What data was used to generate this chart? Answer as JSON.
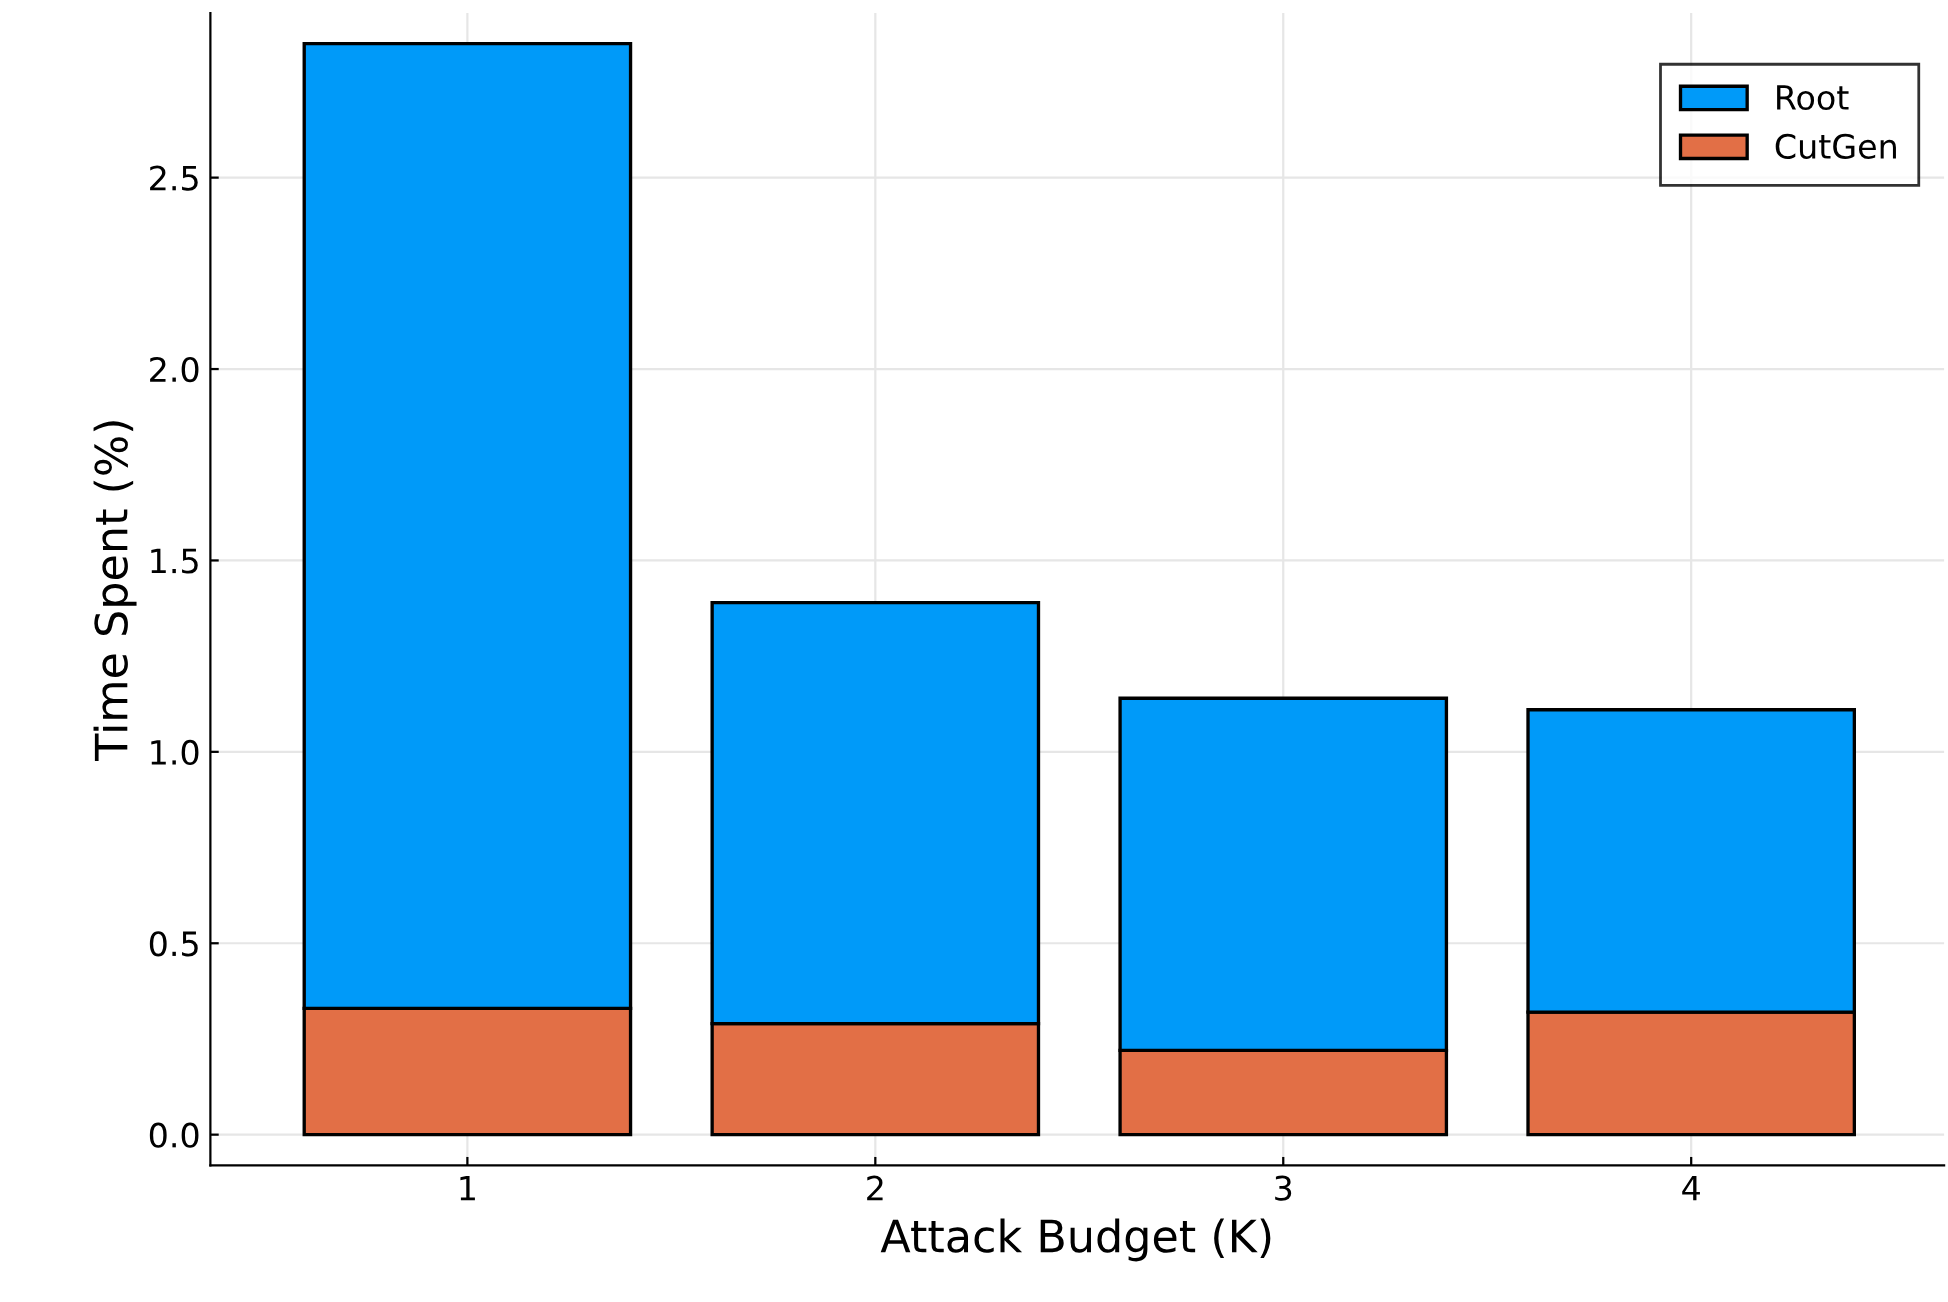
{
  "chart_data": {
    "type": "bar",
    "xlabel": "Attack Budget (K)",
    "ylabel": "Time Spent (%)",
    "categories": [
      "1",
      "2",
      "3",
      "4"
    ],
    "stacked": true,
    "series": [
      {
        "name": "CutGen",
        "color": "#e26f46",
        "values": [
          0.33,
          0.29,
          0.22,
          0.32
        ]
      },
      {
        "name": "Root",
        "color": "#009af9",
        "values": [
          2.52,
          1.1,
          0.92,
          0.79
        ]
      }
    ],
    "ylim": [
      -0.08,
      2.93
    ],
    "yticks": [
      {
        "value": 0,
        "label": "0.0"
      },
      0.5,
      {
        "value": 1,
        "label": "1.0"
      },
      1.5,
      {
        "value": 2,
        "label": "2.0"
      },
      2.5
    ],
    "grid": true,
    "legend": "top right"
  }
}
